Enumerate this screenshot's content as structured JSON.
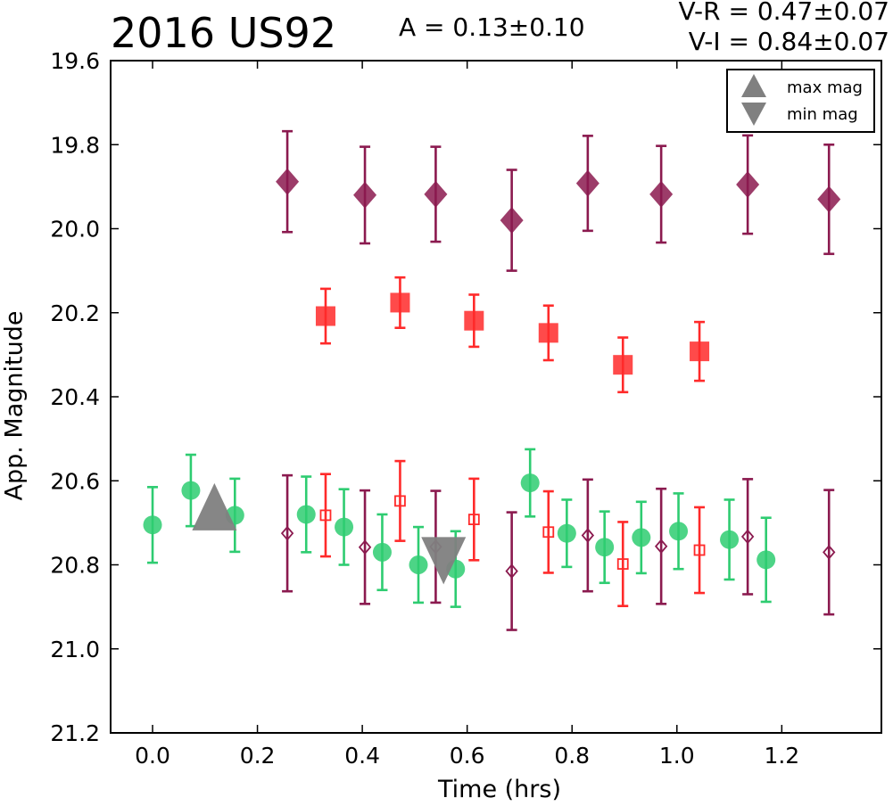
{
  "chart_data": {
    "type": "scatter",
    "title": "2016 US92",
    "annotations": {
      "amplitude": "A  = 0.13±0.10",
      "v_r": "V-R = 0.47±0.07",
      "v_i": "V-I  = 0.84±0.07"
    },
    "xlabel": "Time (hrs)",
    "ylabel": "App. Magnitude",
    "xlim": [
      -0.08,
      1.39
    ],
    "ylim": [
      21.2,
      19.6
    ],
    "y_inverted": true,
    "xticks": [
      "0.0",
      "0.2",
      "0.4",
      "0.6",
      "0.8",
      "1.0",
      "1.2"
    ],
    "yticks": [
      "19.6",
      "19.8",
      "20.0",
      "20.2",
      "20.4",
      "20.6",
      "20.8",
      "21.0",
      "21.2"
    ],
    "grid": false,
    "legend": {
      "location": "top-right",
      "entries": [
        {
          "label": "max mag",
          "marker": "triangle-up",
          "color": "#808080"
        },
        {
          "label": "min mag",
          "marker": "triangle-down",
          "color": "#808080"
        }
      ]
    },
    "series": [
      {
        "marker": "filled-circle",
        "color": "#2ecc71",
        "points": [
          {
            "x": 0.0,
            "y": 20.705,
            "err": 0.09
          },
          {
            "x": 0.073,
            "y": 20.623,
            "err": 0.085
          },
          {
            "x": 0.157,
            "y": 20.682,
            "err": 0.087
          },
          {
            "x": 0.293,
            "y": 20.68,
            "err": 0.09
          },
          {
            "x": 0.365,
            "y": 20.71,
            "err": 0.09
          },
          {
            "x": 0.438,
            "y": 20.77,
            "err": 0.09
          },
          {
            "x": 0.507,
            "y": 20.8,
            "err": 0.09
          },
          {
            "x": 0.578,
            "y": 20.81,
            "err": 0.09
          },
          {
            "x": 0.72,
            "y": 20.605,
            "err": 0.08
          },
          {
            "x": 0.79,
            "y": 20.725,
            "err": 0.08
          },
          {
            "x": 0.862,
            "y": 20.758,
            "err": 0.085
          },
          {
            "x": 0.932,
            "y": 20.735,
            "err": 0.085
          },
          {
            "x": 1.003,
            "y": 20.72,
            "err": 0.09
          },
          {
            "x": 1.1,
            "y": 20.74,
            "err": 0.095
          },
          {
            "x": 1.17,
            "y": 20.788,
            "err": 0.1
          }
        ]
      },
      {
        "marker": "filled-square",
        "color": "#ff2a2a",
        "points": [
          {
            "x": 0.33,
            "y": 20.208,
            "err": 0.065
          },
          {
            "x": 0.472,
            "y": 20.176,
            "err": 0.06
          },
          {
            "x": 0.613,
            "y": 20.219,
            "err": 0.062
          },
          {
            "x": 0.755,
            "y": 20.248,
            "err": 0.065
          },
          {
            "x": 0.897,
            "y": 20.324,
            "err": 0.065
          },
          {
            "x": 1.043,
            "y": 20.292,
            "err": 0.07
          }
        ]
      },
      {
        "marker": "open-square",
        "color": "#ff2a2a",
        "points": [
          {
            "x": 0.33,
            "y": 20.682,
            "err": 0.098
          },
          {
            "x": 0.472,
            "y": 20.648,
            "err": 0.095
          },
          {
            "x": 0.613,
            "y": 20.692,
            "err": 0.097
          },
          {
            "x": 0.755,
            "y": 20.722,
            "err": 0.097
          },
          {
            "x": 0.897,
            "y": 20.798,
            "err": 0.1
          },
          {
            "x": 1.043,
            "y": 20.765,
            "err": 0.102
          }
        ]
      },
      {
        "marker": "filled-diamond",
        "color": "#8b1a4f",
        "points": [
          {
            "x": 0.257,
            "y": 19.888,
            "err": 0.12
          },
          {
            "x": 0.405,
            "y": 19.92,
            "err": 0.115
          },
          {
            "x": 0.54,
            "y": 19.918,
            "err": 0.113
          },
          {
            "x": 0.685,
            "y": 19.98,
            "err": 0.12
          },
          {
            "x": 0.83,
            "y": 19.892,
            "err": 0.113
          },
          {
            "x": 0.97,
            "y": 19.918,
            "err": 0.115
          },
          {
            "x": 1.135,
            "y": 19.895,
            "err": 0.117
          },
          {
            "x": 1.29,
            "y": 19.93,
            "err": 0.13
          }
        ]
      },
      {
        "marker": "open-diamond",
        "color": "#8b1a4f",
        "points": [
          {
            "x": 0.257,
            "y": 20.725,
            "err": 0.138
          },
          {
            "x": 0.405,
            "y": 20.758,
            "err": 0.135
          },
          {
            "x": 0.54,
            "y": 20.757,
            "err": 0.133
          },
          {
            "x": 0.685,
            "y": 20.815,
            "err": 0.14
          },
          {
            "x": 0.83,
            "y": 20.73,
            "err": 0.133
          },
          {
            "x": 0.97,
            "y": 20.756,
            "err": 0.137
          },
          {
            "x": 1.135,
            "y": 20.733,
            "err": 0.137
          },
          {
            "x": 1.29,
            "y": 20.77,
            "err": 0.148
          }
        ]
      }
    ],
    "markers": [
      {
        "label": "max mag",
        "marker": "triangle-up",
        "color": "#808080",
        "x": 0.118,
        "y": 20.665
      },
      {
        "label": "min mag",
        "marker": "triangle-down",
        "color": "#808080",
        "x": 0.555,
        "y": 20.787
      }
    ]
  }
}
